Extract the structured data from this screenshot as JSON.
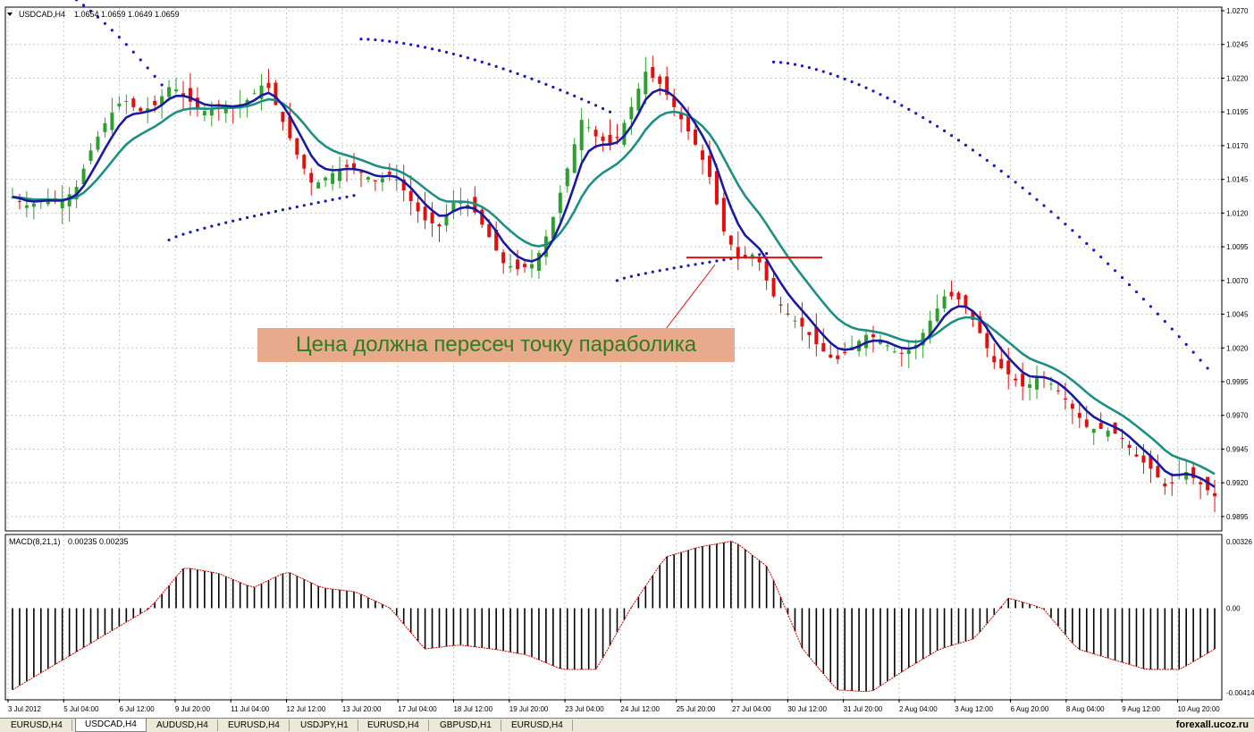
{
  "window": {
    "symbol_title": "USDCAD,H4",
    "ohlc_readout": "1.0654 1.0659 1.0649 1.0659",
    "macd_title": "MACD(8,21,1)",
    "macd_readout": "0.00235 0.00235"
  },
  "annotation": {
    "text": "Цена должна пересеч точку параболика"
  },
  "tabs": [
    {
      "label": "EURUSD,H4",
      "active": false
    },
    {
      "label": "USDCAD,H4",
      "active": true
    },
    {
      "label": "AUDUSD,H4",
      "active": false
    },
    {
      "label": "EURUSD,H4",
      "active": false
    },
    {
      "label": "USDJPY,H1",
      "active": false
    },
    {
      "label": "EURUSD,H4",
      "active": false
    },
    {
      "label": "GBPUSD,H1",
      "active": false
    },
    {
      "label": "EURUSD,H4",
      "active": false
    }
  ],
  "watermark": "forexall.ucoz.ru",
  "colors": {
    "bull": "#2e9e2e",
    "bear": "#e01010",
    "fast_ma": "#1a1aa0",
    "slow_ma": "#1e8f80",
    "parabolic_sar": "#1a1ab4",
    "macd_hist": "#000000",
    "macd_signal": "#c00000",
    "level_line": "#e01010",
    "annotation_bg": "#e8a98c",
    "annotation_text": "#2e7d1e"
  },
  "chart_data": [
    {
      "type": "candlestick",
      "title": "USDCAD,H4",
      "x_tick_labels": [
        "3 Jul 2012",
        "5 Jul 04:00",
        "6 Jul 12:00",
        "9 Jul 20:00",
        "11 Jul 04:00",
        "12 Jul 12:00",
        "13 Jul 20:00",
        "17 Jul 04:00",
        "18 Jul 12:00",
        "19 Jul 20:00",
        "23 Jul 04:00",
        "24 Jul 12:00",
        "25 Jul 20:00",
        "27 Jul 04:00",
        "30 Jul 12:00",
        "31 Jul 20:00",
        "2 Aug 04:00",
        "3 Aug 12:00",
        "6 Aug 20:00",
        "8 Aug 04:00",
        "9 Aug 12:00",
        "10 Aug 20:00"
      ],
      "y_tick_labels": [
        "1.0270",
        "1.0245",
        "1.0220",
        "1.0195",
        "1.0170",
        "1.0145",
        "1.0120",
        "1.0095",
        "1.0070",
        "1.0045",
        "1.0020",
        "0.9995",
        "0.9970",
        "0.9945",
        "0.9920",
        "0.9895"
      ],
      "ylim": [
        0.9885,
        1.0272
      ],
      "grid": true,
      "close_anchors": [
        1.0132,
        1.0125,
        1.0131,
        1.0128,
        1.0138,
        1.0168,
        1.019,
        1.0205,
        1.0195,
        1.02,
        1.0215,
        1.0205,
        1.0195,
        1.02,
        1.0198,
        1.0205,
        1.0218,
        1.019,
        1.0163,
        1.014,
        1.0148,
        1.0155,
        1.015,
        1.0143,
        1.015,
        1.0132,
        1.0115,
        1.011,
        1.013,
        1.0125,
        1.0105,
        1.0083,
        1.0078,
        1.0083,
        1.011,
        1.015,
        1.019,
        1.0175,
        1.017,
        1.0195,
        1.0225,
        1.0215,
        1.0195,
        1.0175,
        1.015,
        1.0105,
        1.0085,
        1.009,
        1.006,
        1.0045,
        1.0035,
        1.002,
        1.001,
        1.002,
        1.003,
        1.0025,
        1.0015,
        1.002,
        1.004,
        1.006,
        1.0055,
        1.0035,
        1.001,
        1.0,
        0.999,
        1.0,
        0.999,
        0.9975,
        0.996,
        0.996,
        0.9955,
        0.994,
        0.993,
        0.9915,
        0.993,
        0.992,
        0.991
      ],
      "series": [
        {
          "name": "",
          "kind": "ma_fast"
        },
        {
          "name": "",
          "kind": "ma_slow"
        },
        {
          "name": "",
          "kind": "parabolic_sar"
        }
      ],
      "parabolic_sar_segments": [
        {
          "from_bar": 0,
          "to_bar": 10,
          "side": "above",
          "start": 1.03,
          "end": 1.0215
        },
        {
          "from_bar": 10,
          "to_bar": 22,
          "side": "below",
          "start": 1.01,
          "end": 1.0133
        },
        {
          "from_bar": 22,
          "to_bar": 38,
          "side": "above",
          "start": 1.0249,
          "end": 1.0195
        },
        {
          "from_bar": 38,
          "to_bar": 48,
          "side": "below",
          "start": 1.007,
          "end": 1.009
        },
        {
          "from_bar": 48,
          "to_bar": 76,
          "side": "above",
          "start": 1.0232,
          "end": 1.0005
        }
      ],
      "horizontal_level": 1.0087
    },
    {
      "type": "bar",
      "title": "MACD(8,21,1)",
      "y_tick_labels": [
        "0.00326",
        "0.00",
        "-0.00414"
      ],
      "ylim": [
        -0.00414,
        0.00326
      ],
      "macd_anchors": [
        -0.004,
        -0.003,
        -0.002,
        -0.001,
        0.0,
        0.002,
        0.0017,
        0.001,
        0.0018,
        0.001,
        0.0008,
        0.0,
        -0.002,
        -0.0018,
        -0.002,
        -0.0023,
        -0.003,
        -0.003,
        0.0,
        0.0025,
        0.003,
        0.0033,
        0.002,
        -0.002,
        -0.004,
        -0.0041,
        -0.003,
        -0.002,
        -0.0015,
        0.0005,
        0.0,
        -0.002,
        -0.0025,
        -0.003,
        -0.003,
        -0.002
      ]
    }
  ]
}
